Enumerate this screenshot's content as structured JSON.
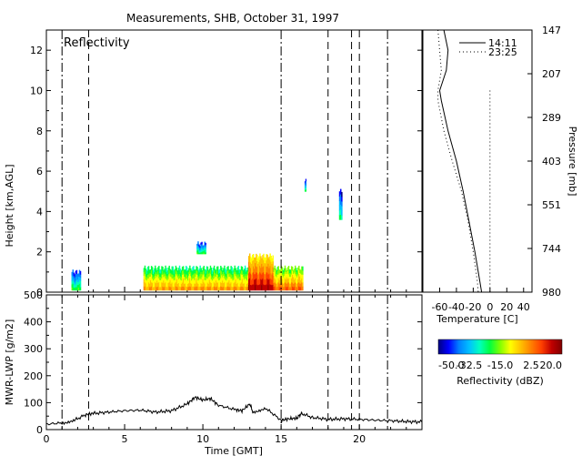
{
  "chart_data": [
    {
      "type": "heatmap",
      "title": "Measurements, SHB, October 31, 1997",
      "panel_label": "Reflectivity",
      "ylabel": "Height [km,AGL]",
      "ylim": [
        0,
        13
      ],
      "yticks": [
        0,
        2,
        4,
        6,
        8,
        10,
        12
      ],
      "xlim": [
        0,
        24
      ],
      "vlines_dashdot": [
        1.0,
        15.0,
        21.8
      ],
      "vlines_dashed": [
        2.7,
        18.0,
        19.5,
        20.0
      ],
      "echoes": [
        {
          "t0": 1.6,
          "t1": 2.2,
          "z0": 0.1,
          "z1": 1.0,
          "peak_dbz": -20
        },
        {
          "t0": 6.2,
          "t1": 12.9,
          "z0": 0.1,
          "z1": 1.2,
          "peak_dbz": 0
        },
        {
          "t0": 12.9,
          "t1": 14.5,
          "z0": 0.1,
          "z1": 1.8,
          "peak_dbz": 15
        },
        {
          "t0": 14.5,
          "t1": 16.4,
          "z0": 0.1,
          "z1": 1.2,
          "peak_dbz": 5
        },
        {
          "t0": 9.6,
          "t1": 10.2,
          "z0": 1.9,
          "z1": 2.4,
          "peak_dbz": -20
        },
        {
          "t0": 16.5,
          "t1": 16.6,
          "z0": 5.0,
          "z1": 5.5,
          "peak_dbz": -25
        },
        {
          "t0": 18.7,
          "t1": 18.9,
          "z0": 3.6,
          "z1": 5.0,
          "peak_dbz": -25
        }
      ]
    },
    {
      "type": "line",
      "ylabel": "MWR-LWP [g/m2]",
      "xlabel": "Time [GMT]",
      "xlim": [
        0,
        24
      ],
      "ylim": [
        0,
        500
      ],
      "xticks": [
        0,
        5,
        10,
        15,
        20
      ],
      "yticks": [
        0,
        100,
        200,
        300,
        400,
        500
      ],
      "x": [
        0,
        1,
        1.8,
        2.5,
        3,
        4,
        5,
        6,
        7,
        8,
        9,
        9.5,
        10,
        10.5,
        11,
        12,
        12.5,
        13,
        13.2,
        14,
        15,
        15.5,
        16,
        16.3,
        17,
        18,
        19,
        20,
        21,
        22,
        23,
        24
      ],
      "series": [
        {
          "values": [
            20,
            25,
            35,
            55,
            60,
            65,
            70,
            72,
            65,
            70,
            95,
            120,
            110,
            115,
            90,
            75,
            70,
            95,
            65,
            80,
            35,
            40,
            42,
            60,
            45,
            38,
            40,
            38,
            35,
            33,
            30,
            28
          ]
        }
      ]
    },
    {
      "type": "line",
      "xlabel": "Temperature [C]",
      "ylabel": "Pressure [mb]",
      "xlim": [
        -80,
        50
      ],
      "xticks": [
        -60,
        -40,
        -20,
        0,
        20,
        40
      ],
      "pressure_ticks": [
        "147",
        "207",
        "289",
        "403",
        "551",
        "744",
        "980"
      ],
      "legend_position": "top-right",
      "series": [
        {
          "name": "14:11",
          "style": "solid",
          "points": [
            [
              -55,
              13
            ],
            [
              -50,
              12
            ],
            [
              -52,
              11
            ],
            [
              -60,
              10
            ],
            [
              -58,
              9.5
            ],
            [
              -50,
              8
            ],
            [
              -40,
              6.5
            ],
            [
              -32,
              5
            ],
            [
              -25,
              3.5
            ],
            [
              -18,
              2
            ],
            [
              -12,
              0.5
            ],
            [
              -10,
              0
            ]
          ]
        },
        {
          "name": "23:25",
          "style": "dotted",
          "points": [
            [
              -62,
              13
            ],
            [
              -58,
              11
            ],
            [
              -62,
              10
            ],
            [
              -62,
              9.5
            ],
            [
              -55,
              8
            ],
            [
              -45,
              6.5
            ],
            [
              -34,
              5
            ],
            [
              -26,
              3.5
            ],
            [
              -20,
              2
            ],
            [
              -15,
              0.5
            ],
            [
              -14,
              0
            ]
          ]
        },
        {
          "name": "",
          "style": "dotted",
          "points": [
            [
              0,
              10
            ],
            [
              0,
              0
            ]
          ]
        }
      ]
    },
    {
      "type": "heatmap",
      "colorbar_label": "Reflectivity (dBZ)",
      "range": [
        -50,
        20
      ],
      "tick_labels": [
        "-50.0",
        "-32.5",
        "-15.0",
        "2.5",
        "20.0"
      ],
      "colormap": [
        "#000080",
        "#0000ff",
        "#0080ff",
        "#00c0ff",
        "#00ffc0",
        "#00ff40",
        "#80ff00",
        "#ffff00",
        "#ffc000",
        "#ff8000",
        "#ff4000",
        "#c00000",
        "#800000"
      ]
    }
  ]
}
